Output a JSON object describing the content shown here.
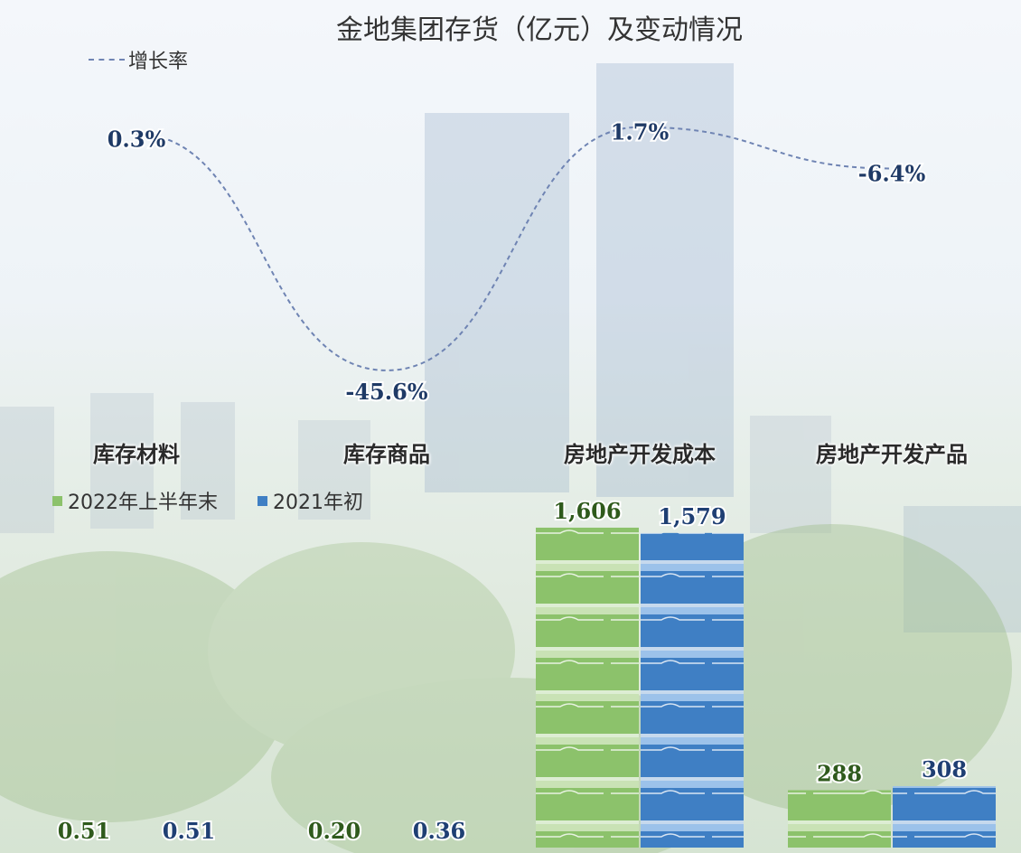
{
  "chart_data": {
    "type": "bar",
    "title": "金地集团存货（亿元）及变动情况",
    "categories": [
      "库存材料",
      "库存商品",
      "房地产开发成本",
      "房地产开发产品"
    ],
    "series": [
      {
        "name": "2022年上半年末",
        "values": [
          0.51,
          0.2,
          1606,
          288
        ],
        "labels": [
          "0.51",
          "0.20",
          "1,606",
          "288"
        ],
        "color": "#8cc26b"
      },
      {
        "name": "2021年初",
        "values": [
          0.51,
          0.36,
          1579,
          308
        ],
        "labels": [
          "0.51",
          "0.36",
          "1,579",
          "308"
        ],
        "color": "#3f7fc4"
      }
    ],
    "line_series": {
      "name": "增长率",
      "values": [
        0.3,
        -45.6,
        1.7,
        -6.4
      ],
      "labels": [
        "0.3%",
        "-45.6%",
        "1.7%",
        "-6.4%"
      ],
      "color": "#6f84b3",
      "style": "dashed"
    },
    "legend": [
      "增长率",
      "2022年上半年末",
      "2021年初"
    ],
    "grid": false
  }
}
